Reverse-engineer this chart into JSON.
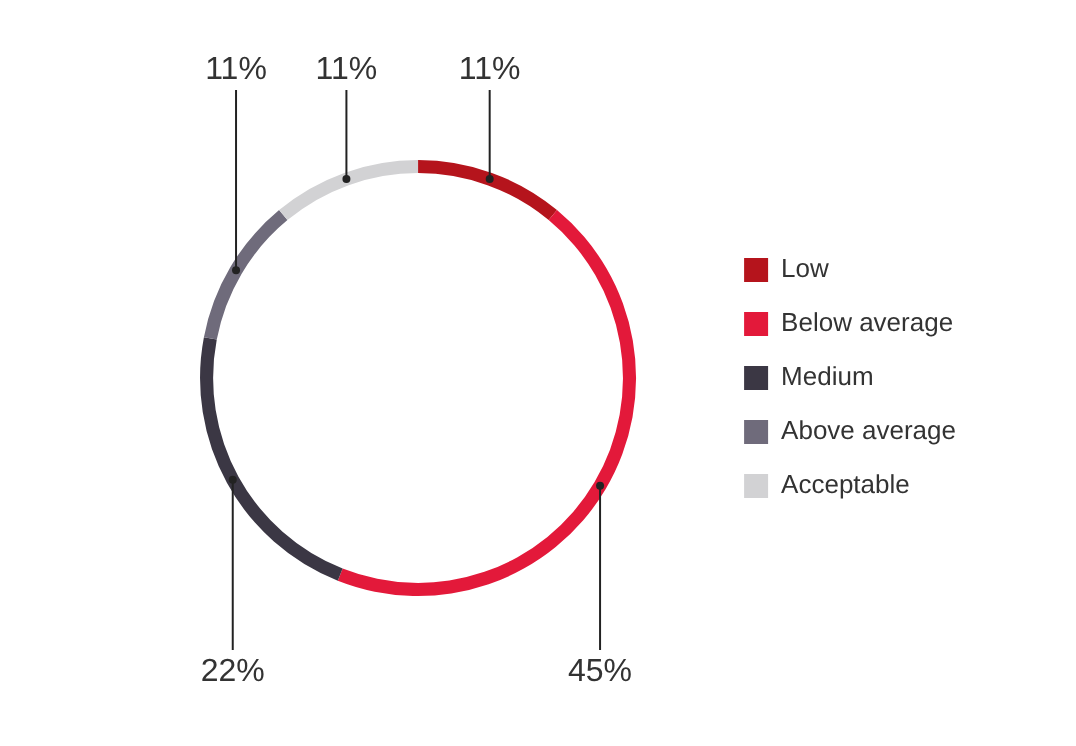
{
  "chart_data": {
    "type": "donut",
    "categories": [
      "Low",
      "Below average",
      "Medium",
      "Above average",
      "Acceptable"
    ],
    "values": [
      11,
      45,
      22,
      11,
      11
    ],
    "value_labels": [
      "11%",
      "45%",
      "22%",
      "11%",
      "11%"
    ],
    "colors": [
      "#b5141c",
      "#e3193a",
      "#3b3744",
      "#6f6b7b",
      "#d2d2d4"
    ],
    "legend": "right"
  }
}
